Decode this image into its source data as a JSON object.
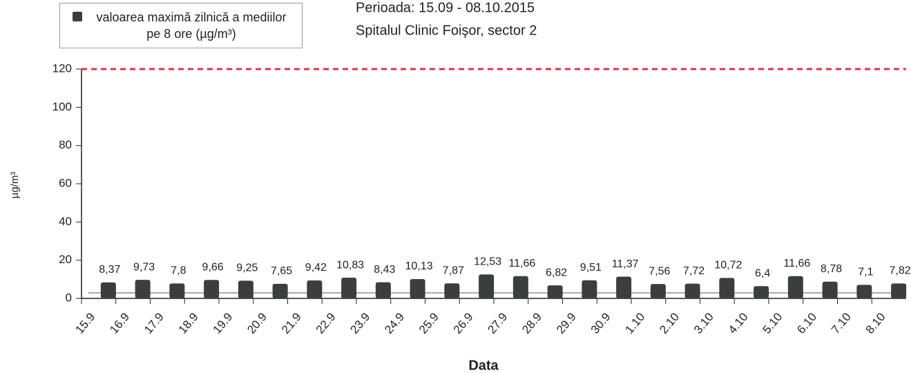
{
  "chart_data": {
    "type": "bar",
    "title": "Perioada: 15.09 - 08.10.2015",
    "subtitle": "Spitalul Clinic Foişor, sector 2",
    "x_label": "Data",
    "y_label": "µg/m³",
    "categories": [
      "15.9",
      "16.9",
      "17.9",
      "18.9",
      "19.9",
      "20.9",
      "21.9",
      "22.9",
      "23.9",
      "24.9",
      "25.9",
      "26.9",
      "27.9",
      "28.9",
      "29.9",
      "30.9",
      "1.10",
      "2.10",
      "3.10",
      "4.10",
      "5.10",
      "6.10",
      "7.10",
      "8.10"
    ],
    "series": [
      {
        "name": "valoarea maximă zilnică a mediilor pe 8 ore (µg/m³)",
        "color": "#3a3f3e",
        "values": [
          8.37,
          9.73,
          7.8,
          9.66,
          9.25,
          7.65,
          9.42,
          10.83,
          8.43,
          10.13,
          7.87,
          12.53,
          11.66,
          6.82,
          9.51,
          11.37,
          7.56,
          7.72,
          10.72,
          6.4,
          11.66,
          8.78,
          7.1,
          7.82
        ],
        "value_labels": [
          "8,37",
          "9,73",
          "7,8",
          "9,66",
          "9,25",
          "7,65",
          "9,42",
          "10,83",
          "8,43",
          "10,13",
          "7,87",
          "12,53",
          "11,66",
          "6,82",
          "9,51",
          "11,37",
          "7,56",
          "7,72",
          "10,72",
          "6,4",
          "11,66",
          "8,78",
          "7,1",
          "7,82"
        ]
      }
    ],
    "ylim": [
      0,
      120
    ],
    "yticks": [
      0,
      20,
      40,
      60,
      80,
      100,
      120
    ],
    "threshold": 120,
    "threshold_color": "#e0324a",
    "grid": false
  }
}
